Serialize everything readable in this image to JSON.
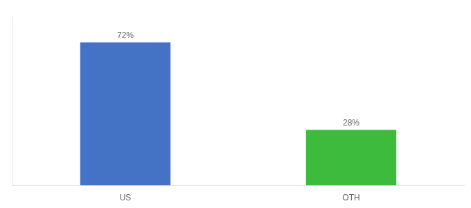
{
  "chart_data": {
    "type": "bar",
    "categories": [
      "US",
      "OTH"
    ],
    "values": [
      72,
      28
    ],
    "colors": [
      "#4472c4",
      "#3dbb3d"
    ],
    "ylim": [
      0,
      85
    ],
    "data_labels": true,
    "value_labels": [
      "72%",
      "28%"
    ],
    "tick_labels": "x",
    "grid": false
  }
}
